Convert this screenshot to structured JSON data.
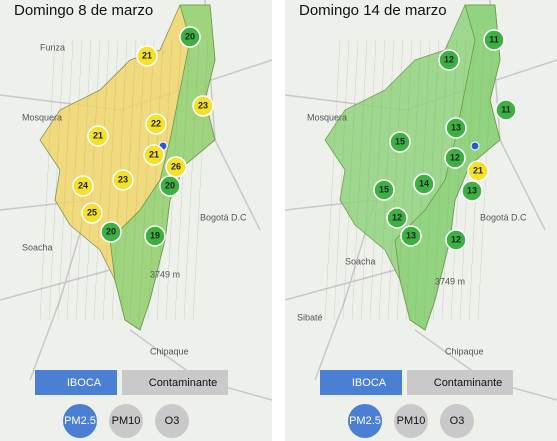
{
  "panels": [
    {
      "title": "Domingo 8 de marzo",
      "map_labels": [
        "Funza",
        "Mosquera",
        "Bogotá D.C",
        "Soacha",
        "Chipaque",
        "3749 m"
      ],
      "markers": [
        {
          "value": 21,
          "color": "#f5e12a"
        },
        {
          "value": 20,
          "color": "#3cb043"
        },
        {
          "value": 23,
          "color": "#f5e12a"
        },
        {
          "value": 22,
          "color": "#f5e12a"
        },
        {
          "value": 21,
          "color": "#f5e12a"
        },
        {
          "value": 21,
          "color": "#f5e12a"
        },
        {
          "value": 26,
          "color": "#f5e12a"
        },
        {
          "value": 20,
          "color": "#3cb043"
        },
        {
          "value": 24,
          "color": "#f5e12a"
        },
        {
          "value": 23,
          "color": "#f5e12a"
        },
        {
          "value": 25,
          "color": "#f5e12a"
        },
        {
          "value": 20,
          "color": "#3cb043"
        },
        {
          "value": 19,
          "color": "#3cb043"
        }
      ],
      "tabs": [
        "IBOCA",
        "Contaminante"
      ],
      "pollutants": [
        "PM2.5",
        "PM10",
        "O3"
      ]
    },
    {
      "title": "Domingo 14 de marzo",
      "map_labels": [
        "Mosquera",
        "Bogotá D.C",
        "Soacha",
        "Sibaté",
        "Chipaque",
        "3749 m"
      ],
      "markers": [
        {
          "value": 11,
          "color": "#3cb043"
        },
        {
          "value": 12,
          "color": "#3cb043"
        },
        {
          "value": 11,
          "color": "#3cb043"
        },
        {
          "value": 13,
          "color": "#3cb043"
        },
        {
          "value": 15,
          "color": "#3cb043"
        },
        {
          "value": 12,
          "color": "#3cb043"
        },
        {
          "value": 21,
          "color": "#f5e12a"
        },
        {
          "value": 13,
          "color": "#3cb043"
        },
        {
          "value": 14,
          "color": "#3cb043"
        },
        {
          "value": 15,
          "color": "#3cb043"
        },
        {
          "value": 12,
          "color": "#3cb043"
        },
        {
          "value": 13,
          "color": "#3cb043"
        },
        {
          "value": 12,
          "color": "#3cb043"
        }
      ],
      "tabs": [
        "IBOCA",
        "Contaminante"
      ],
      "pollutants": [
        "PM2.5",
        "PM10",
        "O3"
      ]
    }
  ]
}
